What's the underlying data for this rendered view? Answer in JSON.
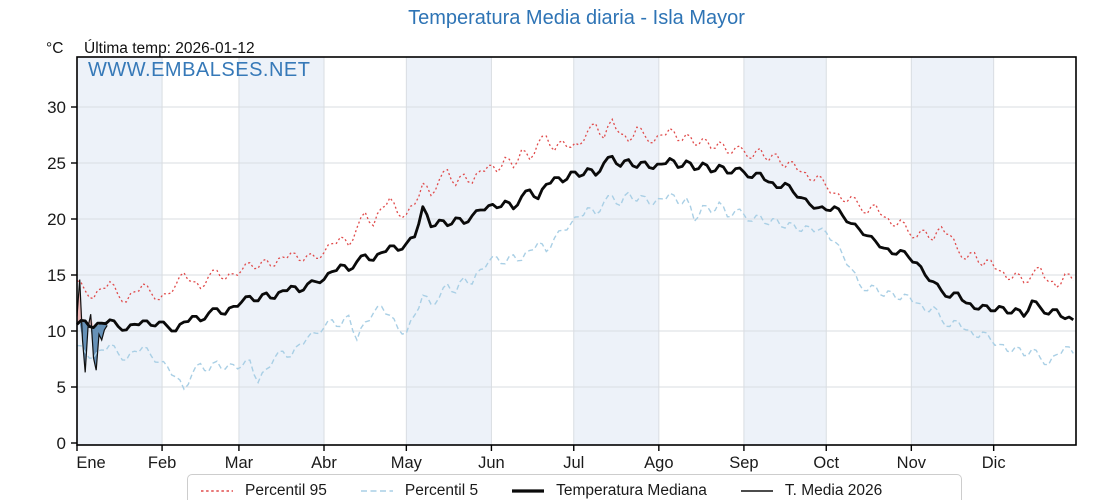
{
  "header": {
    "title": "Temperatura Media diaria - Isla Mayor",
    "unit_label": "°C",
    "last_temp_label": "Última temp: 2026-01-12",
    "watermark": "WWW.EMBALSES.NET"
  },
  "colors": {
    "title_blue": "#2e74b5",
    "watermark_blue": "#3679b8",
    "p95_red": "#e04b4b",
    "p5_blue": "#a9cfe5",
    "median_black": "#0a0a0a",
    "t2026_black": "#111111",
    "fill_above_median": "#eda8a8",
    "fill_below_median": "#4d80ab",
    "month_stripe": "#edf2f9",
    "gridline": "#d9dde2",
    "axis": "#000000"
  },
  "chart_data": {
    "type": "line",
    "title": "Temperatura Media diaria - Isla Mayor",
    "ylabel": "°C",
    "ylim": [
      0,
      34.5
    ],
    "grid": true,
    "legend_position": "bottom",
    "x_axis": {
      "months": [
        "Ene",
        "Feb",
        "Mar",
        "Abr",
        "May",
        "Jun",
        "Jul",
        "Ago",
        "Sep",
        "Oct",
        "Nov",
        "Dic"
      ],
      "month_start_days": [
        1,
        32,
        60,
        91,
        121,
        152,
        182,
        213,
        244,
        274,
        305,
        335
      ],
      "days_in_year": 365
    },
    "y_axis": {
      "ticks": [
        0,
        5,
        10,
        15,
        20,
        25,
        30
      ],
      "unit": "°C"
    },
    "series": [
      {
        "name": "Percentil 95",
        "style": "dotted-red",
        "start_day": 1,
        "day_step": 3,
        "values": [
          14.5,
          13.6,
          12.9,
          13.8,
          14.4,
          13.2,
          12.6,
          13.5,
          14.2,
          13.4,
          12.8,
          13.3,
          14.1,
          15.2,
          14.4,
          13.8,
          14.9,
          15.4,
          14.6,
          15.1,
          15.4,
          16.1,
          15.6,
          16.4,
          15.8,
          16.6,
          17.0,
          16.3,
          16.8,
          16.5,
          17.0,
          17.8,
          18.4,
          17.6,
          19.2,
          20.6,
          19.4,
          21.0,
          21.9,
          20.4,
          20.4,
          21.3,
          23.2,
          22.1,
          23.5,
          24.4,
          23.0,
          24.0,
          23.2,
          24.3,
          24.8,
          24.2,
          25.5,
          24.6,
          26.2,
          25.3,
          26.8,
          27.4,
          26.1,
          27.0,
          26.4,
          26.6,
          27.8,
          28.5,
          27.2,
          28.9,
          27.6,
          26.9,
          28.2,
          27.4,
          26.8,
          27.5,
          28.1,
          27.0,
          27.6,
          26.6,
          27.2,
          26.3,
          26.9,
          25.9,
          26.4,
          26.1,
          25.4,
          26.3,
          25.2,
          25.8,
          24.6,
          25.1,
          24.2,
          23.5,
          23.9,
          22.9,
          22.3,
          21.6,
          22.0,
          21.2,
          20.5,
          21.3,
          20.2,
          19.4,
          19.9,
          18.8,
          18.4,
          19.0,
          18.1,
          19.3,
          18.6,
          17.2,
          16.4,
          17.0,
          15.8,
          16.3,
          15.4,
          14.6,
          15.2,
          14.3,
          15.0,
          15.7,
          14.4,
          13.9,
          15.1,
          14.5
        ]
      },
      {
        "name": "Percentil 5",
        "style": "dashed-lightblue",
        "start_day": 1,
        "day_step": 3,
        "values": [
          8.7,
          8.1,
          7.6,
          8.3,
          8.8,
          8.0,
          7.4,
          8.2,
          8.6,
          7.8,
          7.2,
          6.8,
          5.9,
          4.8,
          6.2,
          7.1,
          6.4,
          7.3,
          6.6,
          7.0,
          6.8,
          7.4,
          5.4,
          6.6,
          7.6,
          8.2,
          7.7,
          8.8,
          9.4,
          9.8,
          10.3,
          11.0,
          10.4,
          11.4,
          9.2,
          10.8,
          11.6,
          12.2,
          11.4,
          10.2,
          9.8,
          11.4,
          13.2,
          12.4,
          13.0,
          14.2,
          13.4,
          14.8,
          14.2,
          15.5,
          16.2,
          16.6,
          16.0,
          16.8,
          16.3,
          17.2,
          17.9,
          17.1,
          18.3,
          19.0,
          19.6,
          20.2,
          21.0,
          20.4,
          21.5,
          22.1,
          21.2,
          22.4,
          21.6,
          22.0,
          21.3,
          21.8,
          22.3,
          21.4,
          21.9,
          19.8,
          21.2,
          20.6,
          21.5,
          20.2,
          20.8,
          20.4,
          19.8,
          20.3,
          19.5,
          20.0,
          19.2,
          19.6,
          18.9,
          19.3,
          19.0,
          18.8,
          18.0,
          16.8,
          15.6,
          14.2,
          13.6,
          14.0,
          13.1,
          13.5,
          12.8,
          13.2,
          12.5,
          11.8,
          12.2,
          11.0,
          10.4,
          10.9,
          10.1,
          9.5,
          9.9,
          9.2,
          8.8,
          8.2,
          8.6,
          7.8,
          8.4,
          7.6,
          7.0,
          7.9,
          8.6,
          8.0
        ]
      },
      {
        "name": "Temperatura Mediana",
        "style": "solid-thick-black",
        "start_day": 1,
        "day_step": 3,
        "values": [
          10.6,
          10.9,
          10.3,
          10.7,
          11.0,
          10.4,
          10.1,
          10.6,
          10.9,
          10.5,
          10.8,
          10.4,
          10.0,
          10.8,
          11.3,
          10.9,
          11.6,
          12.0,
          11.5,
          12.2,
          12.6,
          13.1,
          12.7,
          13.4,
          12.9,
          13.6,
          14.0,
          13.5,
          14.2,
          14.4,
          14.6,
          15.3,
          15.9,
          15.4,
          16.2,
          16.8,
          16.3,
          17.0,
          17.6,
          17.2,
          17.8,
          18.4,
          21.1,
          19.3,
          19.9,
          19.4,
          20.1,
          19.6,
          20.3,
          20.8,
          21.2,
          21.0,
          21.6,
          20.9,
          22.0,
          22.6,
          21.8,
          23.1,
          23.7,
          23.3,
          24.2,
          23.8,
          24.5,
          23.9,
          25.0,
          25.6,
          24.7,
          25.3,
          24.6,
          25.1,
          24.5,
          24.9,
          25.4,
          24.6,
          25.2,
          24.4,
          25.0,
          24.2,
          24.8,
          24.1,
          24.5,
          24.2,
          23.7,
          24.1,
          23.3,
          22.8,
          23.2,
          22.4,
          21.9,
          21.3,
          21.0,
          20.8,
          21.1,
          20.3,
          19.6,
          19.1,
          18.5,
          18.0,
          17.4,
          16.9,
          17.2,
          16.6,
          16.1,
          15.0,
          14.4,
          13.6,
          13.0,
          13.4,
          12.5,
          12.0,
          12.3,
          11.8,
          12.2,
          11.6,
          12.0,
          11.3,
          12.7,
          12.1,
          11.5,
          11.9,
          11.1,
          11.0
        ]
      },
      {
        "name": "T. Media 2026",
        "style": "solid-thin-black",
        "start_day": 1,
        "day_step": 1,
        "values": [
          11.3,
          14.6,
          9.2,
          6.3,
          10.3,
          11.5,
          7.6,
          6.5,
          9.7,
          9.2,
          10.1,
          10.5
        ]
      }
    ]
  }
}
